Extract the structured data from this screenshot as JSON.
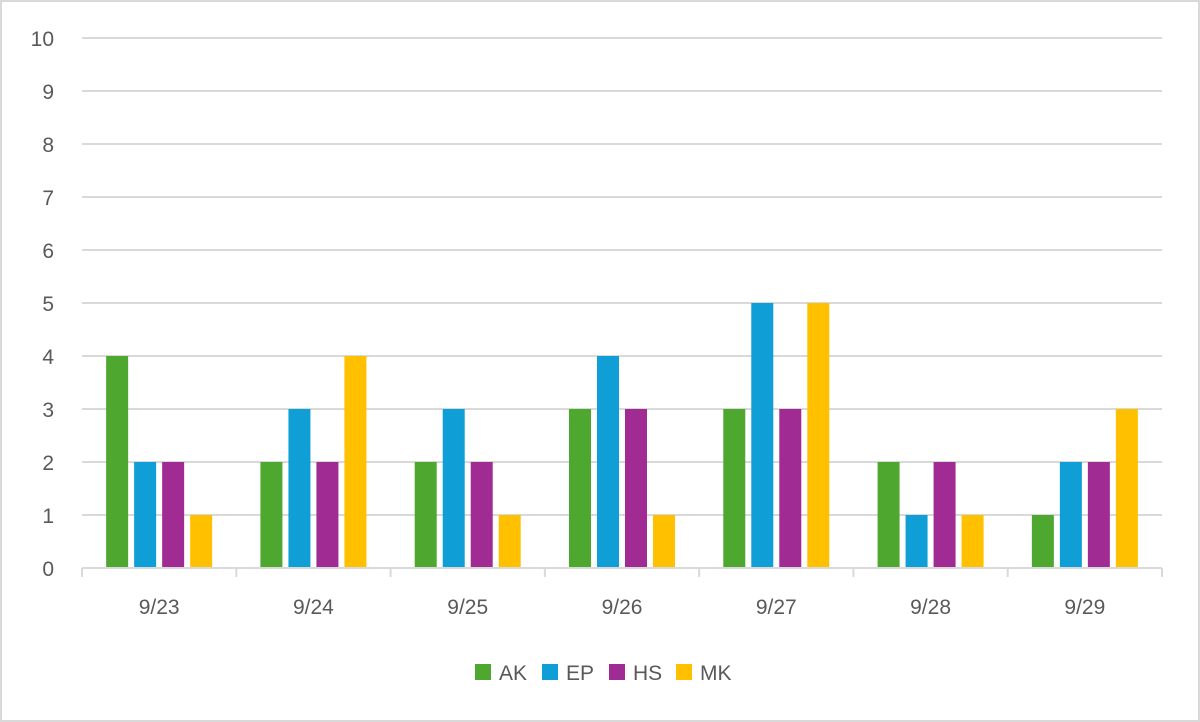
{
  "chart_data": {
    "type": "bar",
    "title": "",
    "xlabel": "",
    "ylabel": "",
    "categories": [
      "9/23",
      "9/24",
      "9/25",
      "9/26",
      "9/27",
      "9/28",
      "9/29"
    ],
    "series": [
      {
        "name": "AK",
        "color": "#4ea72e",
        "values": [
          4,
          2,
          2,
          3,
          3,
          2,
          1
        ]
      },
      {
        "name": "EP",
        "color": "#0f9ed5",
        "values": [
          2,
          3,
          3,
          4,
          5,
          1,
          2
        ]
      },
      {
        "name": "HS",
        "color": "#a02b93",
        "values": [
          2,
          2,
          2,
          3,
          3,
          2,
          2
        ]
      },
      {
        "name": "MK",
        "color": "#ffc000",
        "values": [
          1,
          4,
          1,
          1,
          5,
          1,
          3
        ]
      }
    ],
    "ylim": [
      0,
      10
    ],
    "yticks": [
      0,
      1,
      2,
      3,
      4,
      5,
      6,
      7,
      8,
      9,
      10
    ],
    "grid": true,
    "legend": "bottom",
    "gridline_color": "#d9d9d9",
    "text_color": "#595959"
  }
}
